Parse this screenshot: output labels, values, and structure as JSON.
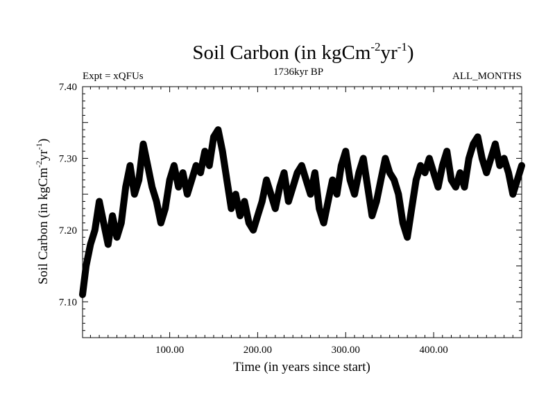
{
  "chart_data": {
    "type": "line",
    "title": {
      "main": "Soil Carbon (in kgCm",
      "exp1": "-2",
      "mid": "yr",
      "exp2": "-1",
      "end": ")"
    },
    "expt_label": "Expt = xQFUs",
    "period_label": "1736kyr BP",
    "months_label": "ALL_MONTHS",
    "xlabel": "Time (in years since start)",
    "ylabel": {
      "main": "Soil Carbon (in kgCm",
      "exp1": "-2",
      "mid": "yr",
      "exp2": "-1",
      "end": ")"
    },
    "xlim": [
      1,
      500
    ],
    "ylim": [
      7.05,
      7.4
    ],
    "x_ticks": [
      100,
      200,
      300,
      400
    ],
    "x_tick_labels": [
      "100.00",
      "200.00",
      "300.00",
      "400.00"
    ],
    "y_ticks": [
      7.1,
      7.2,
      7.3,
      7.4
    ],
    "y_tick_labels": [
      "7.10",
      "7.20",
      "7.30",
      "7.40"
    ],
    "series": [
      {
        "name": "Soil Carbon",
        "color": "#000000",
        "x": [
          1,
          5,
          10,
          15,
          20,
          25,
          30,
          35,
          40,
          45,
          50,
          55,
          60,
          65,
          70,
          75,
          80,
          85,
          90,
          95,
          100,
          105,
          110,
          115,
          120,
          125,
          130,
          135,
          140,
          145,
          150,
          155,
          160,
          165,
          170,
          175,
          180,
          185,
          190,
          195,
          200,
          205,
          210,
          215,
          220,
          225,
          230,
          235,
          240,
          245,
          250,
          255,
          260,
          265,
          270,
          275,
          280,
          285,
          290,
          295,
          300,
          305,
          310,
          315,
          320,
          325,
          330,
          335,
          340,
          345,
          350,
          355,
          360,
          365,
          370,
          375,
          380,
          385,
          390,
          395,
          400,
          405,
          410,
          415,
          420,
          425,
          430,
          435,
          440,
          445,
          450,
          455,
          460,
          465,
          470,
          475,
          480,
          485,
          490,
          495,
          500
        ],
        "values": [
          7.11,
          7.15,
          7.18,
          7.2,
          7.24,
          7.21,
          7.18,
          7.22,
          7.19,
          7.21,
          7.26,
          7.29,
          7.25,
          7.27,
          7.32,
          7.29,
          7.26,
          7.24,
          7.21,
          7.23,
          7.27,
          7.29,
          7.26,
          7.28,
          7.25,
          7.27,
          7.29,
          7.28,
          7.31,
          7.29,
          7.33,
          7.34,
          7.31,
          7.27,
          7.23,
          7.25,
          7.22,
          7.24,
          7.21,
          7.2,
          7.22,
          7.24,
          7.27,
          7.25,
          7.23,
          7.26,
          7.28,
          7.24,
          7.26,
          7.28,
          7.29,
          7.27,
          7.25,
          7.28,
          7.23,
          7.21,
          7.24,
          7.27,
          7.25,
          7.29,
          7.31,
          7.27,
          7.25,
          7.28,
          7.3,
          7.26,
          7.22,
          7.24,
          7.27,
          7.3,
          7.28,
          7.27,
          7.25,
          7.21,
          7.19,
          7.23,
          7.27,
          7.29,
          7.28,
          7.3,
          7.28,
          7.26,
          7.29,
          7.31,
          7.27,
          7.26,
          7.28,
          7.26,
          7.3,
          7.32,
          7.33,
          7.3,
          7.28,
          7.3,
          7.32,
          7.29,
          7.3,
          7.28,
          7.25,
          7.27,
          7.29
        ]
      }
    ]
  }
}
